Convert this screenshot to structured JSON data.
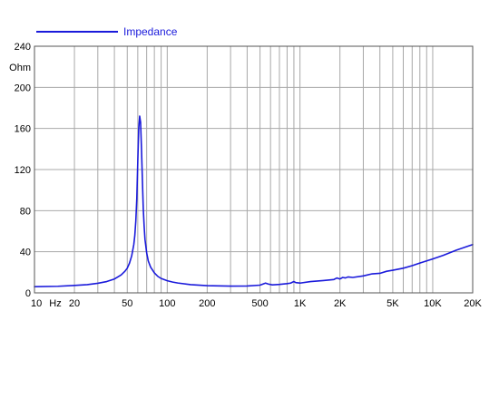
{
  "chart_data": {
    "type": "line",
    "title": "",
    "xlabel": "Hz",
    "ylabel": "Ohm",
    "x_scale": "log",
    "xlim": [
      10,
      20000
    ],
    "ylim": [
      0,
      240
    ],
    "grid": true,
    "legend_position": "top-left",
    "x_ticks": [
      {
        "value": 10,
        "label": "10"
      },
      {
        "value": 20,
        "label": "20"
      },
      {
        "value": 50,
        "label": "50"
      },
      {
        "value": 100,
        "label": "100"
      },
      {
        "value": 200,
        "label": "200"
      },
      {
        "value": 500,
        "label": "500"
      },
      {
        "value": 1000,
        "label": "1K"
      },
      {
        "value": 2000,
        "label": "2K"
      },
      {
        "value": 5000,
        "label": "5K"
      },
      {
        "value": 10000,
        "label": "10K"
      },
      {
        "value": 20000,
        "label": "20K"
      }
    ],
    "y_ticks": [
      0,
      40,
      80,
      120,
      160,
      200,
      240
    ],
    "series": [
      {
        "name": "Impedance",
        "color": "#1a1adb",
        "x": [
          10,
          15,
          20,
          25,
          30,
          35,
          40,
          45,
          48,
          50,
          52,
          54,
          56,
          57,
          58,
          59,
          60,
          61,
          62,
          63,
          64,
          65,
          66,
          67,
          68,
          70,
          72,
          75,
          80,
          85,
          90,
          100,
          110,
          120,
          150,
          200,
          300,
          400,
          500,
          550,
          580,
          620,
          700,
          800,
          850,
          900,
          930,
          1000,
          1200,
          1500,
          1800,
          1900,
          2000,
          2100,
          2200,
          2300,
          2500,
          3000,
          3500,
          4000,
          4500,
          5000,
          6000,
          7000,
          8000,
          10000,
          12000,
          15000,
          18000,
          20000
        ],
        "values": [
          6,
          6.4,
          7.2,
          8,
          9.3,
          11,
          13.5,
          17.5,
          21,
          24,
          29,
          36,
          47,
          56,
          70,
          92,
          128,
          160,
          172,
          166,
          140,
          110,
          82,
          65,
          52,
          39,
          31,
          25,
          19.5,
          16,
          14,
          11.8,
          10.5,
          9.6,
          8,
          7,
          6.6,
          6.7,
          7.5,
          9.5,
          8.5,
          7.8,
          8.2,
          9,
          9.5,
          11,
          10,
          9.5,
          11,
          12,
          13,
          14.5,
          13.5,
          15,
          14.5,
          15.5,
          15,
          16.5,
          18.5,
          19,
          21,
          22,
          24,
          26.5,
          29,
          33,
          36.5,
          41.5,
          45,
          47
        ]
      }
    ]
  },
  "colors": {
    "line": "#1a1adb",
    "legend_text": "#1a1adb",
    "grid": "#a8a8a8",
    "frame": "#555555",
    "plot_bg": "#ffffff"
  }
}
